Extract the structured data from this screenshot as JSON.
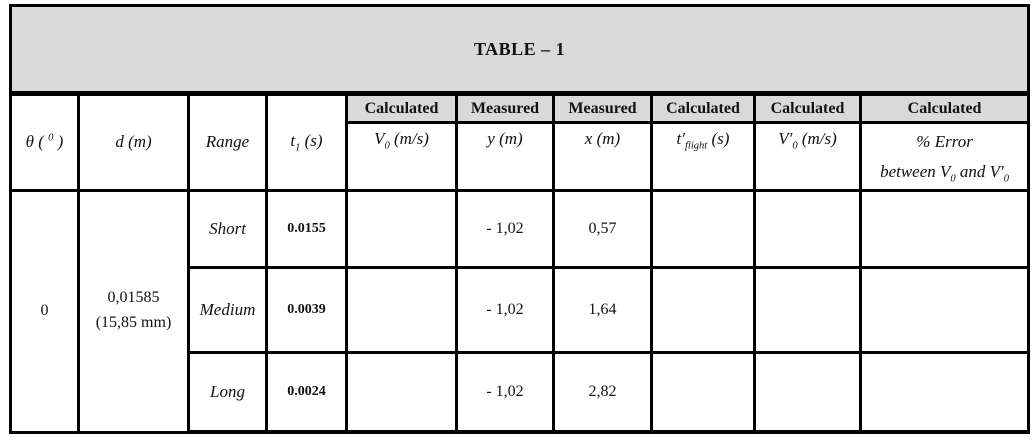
{
  "colors": {
    "header_shade": "#d9d9d9",
    "border": "#000000",
    "page_bg": "#ffffff"
  },
  "table": {
    "title": "TABLE – 1",
    "left_headers": {
      "theta": [
        {
          "t": "θ ( "
        },
        {
          "sup": "0"
        },
        {
          "t": " )"
        }
      ],
      "d": "d (m)",
      "range": "Range",
      "t1": [
        {
          "t": "t"
        },
        {
          "sub": "1"
        },
        {
          "t": " (s)"
        }
      ]
    },
    "group_headers": {
      "v0": "Calculated",
      "y": "Measured",
      "x": "Measured",
      "tflight": "Calculated",
      "v0_prime": "Calculated",
      "error": "Calculated"
    },
    "var_headers": {
      "v0": [
        {
          "t": "V"
        },
        {
          "sub": "0"
        },
        {
          "t": " (m/s)"
        }
      ],
      "y": "y (m)",
      "x": "x (m)",
      "tflight": [
        {
          "t": "t′"
        },
        {
          "sub": "flight"
        },
        {
          "t": " (s)"
        }
      ],
      "v0_prime": [
        {
          "t": "V′"
        },
        {
          "sub": "0"
        },
        {
          "t": " (m/s)"
        }
      ],
      "error_line1": "% Error",
      "error_line2": [
        {
          "t": "between V"
        },
        {
          "sub": "0"
        },
        {
          "t": " and V′"
        },
        {
          "sub": "0"
        }
      ]
    },
    "theta_value": "0",
    "d_value_line1": "0,01585",
    "d_value_line2": "(15,85 mm)",
    "rows": [
      {
        "range": "Short",
        "t1": "0.0155",
        "v0": "",
        "y": "- 1,02",
        "x": "0,57",
        "tflight": "",
        "v0_prime": "",
        "error": ""
      },
      {
        "range": "Medium",
        "t1": "0.0039",
        "v0": "",
        "y": "- 1,02",
        "x": "1,64",
        "tflight": "",
        "v0_prime": "",
        "error": ""
      },
      {
        "range": "Long",
        "t1": "0.0024",
        "v0": "",
        "y": "- 1,02",
        "x": "2,82",
        "tflight": "",
        "v0_prime": "",
        "error": ""
      }
    ]
  }
}
